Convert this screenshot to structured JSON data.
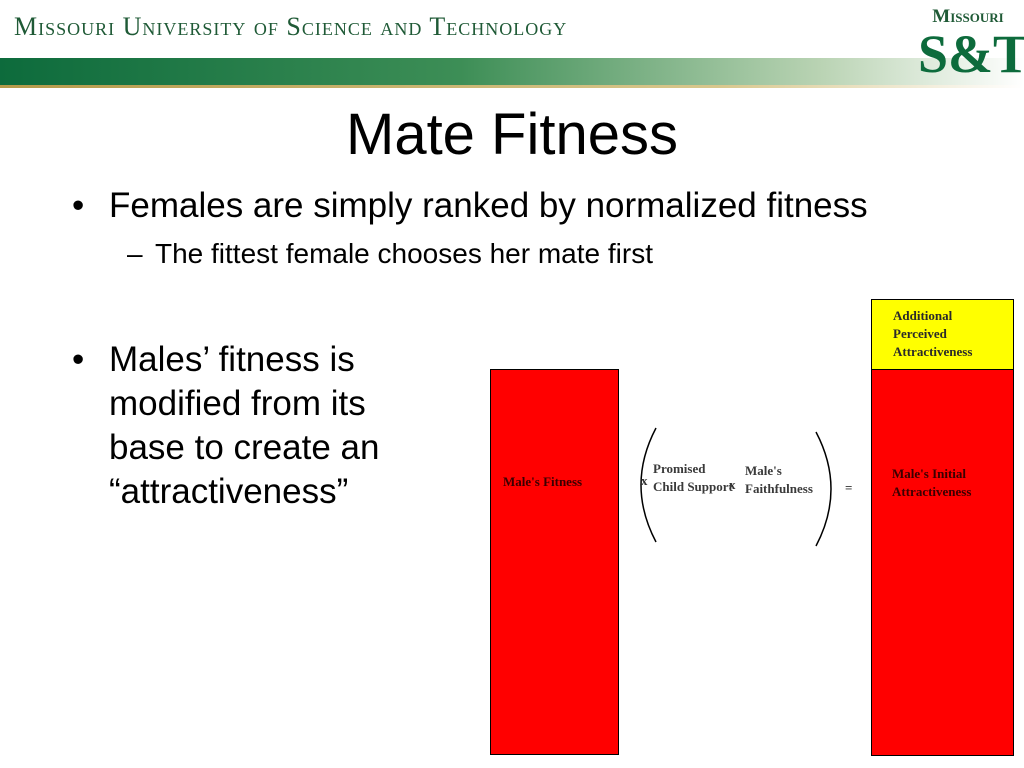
{
  "header": {
    "university_name": "Missouri University of Science and Technology",
    "logo_top": "Missouri",
    "logo_main": "S&T"
  },
  "slide": {
    "title": "Mate Fitness",
    "bullets": [
      {
        "text": "Females are simply ranked by normalized fitness",
        "sub": [
          "The fittest female chooses her mate first"
        ]
      },
      {
        "text": "Males’ fitness is modified from its base to create an “attractiveness”"
      }
    ]
  },
  "diagram": {
    "male_fitness": "Male's Fitness",
    "op_times_1": "x",
    "promised_support": "Promised Child Support",
    "op_times_2": "x",
    "faithfulness": "Male's Faithfulness",
    "op_equals": "=",
    "initial_attractiveness": "Male's Initial Attractiveness",
    "perceived_attractiveness": "Additional Perceived Attractiveness",
    "colors": {
      "red": "#ff0000",
      "yellow": "#ffff00",
      "brand_green": "#0d6b3c"
    }
  }
}
